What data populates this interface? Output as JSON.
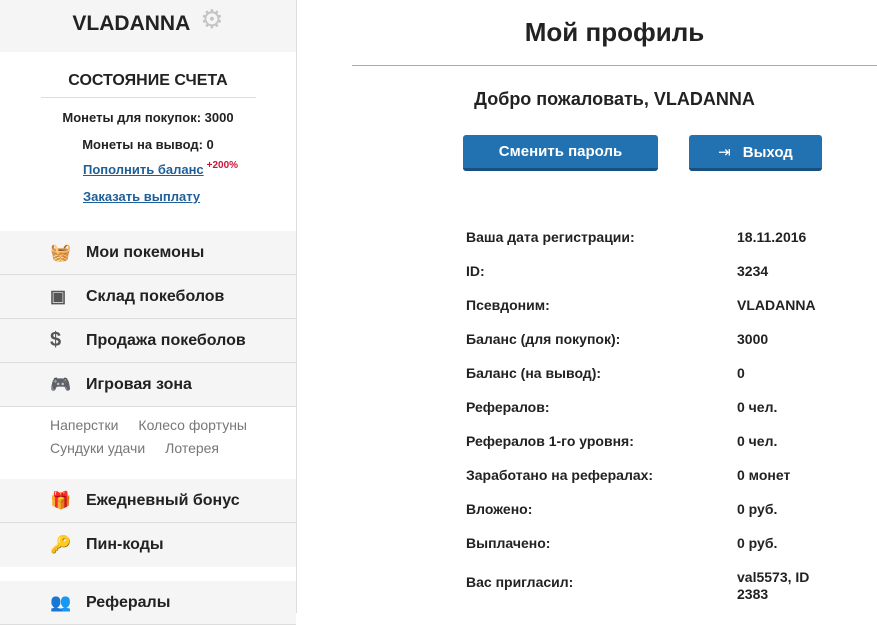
{
  "sidebar": {
    "username": "VLADANNA",
    "account_title": "СОСТОЯНИЕ СЧЕТА",
    "coins_buy": "Монеты для покупок: 3000",
    "coins_out": "Монеты на вывод: 0",
    "topup_link": "Пополнить баланс",
    "topup_badge": "+200%",
    "payout_link": "Заказать выплату",
    "menu": [
      {
        "label": "Мои покемоны",
        "icon": "basket-icon"
      },
      {
        "label": "Склад покеболов",
        "icon": "box-icon"
      },
      {
        "label": "Продажа покеболов",
        "icon": "dollar-icon"
      },
      {
        "label": "Игровая зона",
        "icon": "gamepad-icon"
      }
    ],
    "games": [
      "Наперстки",
      "Колесо фортуны",
      "Сундуки удачи",
      "Лотерея"
    ],
    "menu2": [
      {
        "label": "Ежедневный бонус",
        "icon": "gift-icon"
      },
      {
        "label": "Пин-коды",
        "icon": "key-icon"
      },
      {
        "label": "Рефералы",
        "icon": "users-icon"
      }
    ]
  },
  "main": {
    "title": "Мой профиль",
    "welcome": "Добро пожаловать, VLADANNA",
    "change_password": "Сменить пароль",
    "logout": "Выход",
    "rows": [
      {
        "label": "Ваша дата регистрации:",
        "value": "18.11.2016"
      },
      {
        "label": "ID:",
        "value": "3234"
      },
      {
        "label": "Псевдоним:",
        "value": "VLADANNA"
      },
      {
        "label": "Баланс (для покупок):",
        "value": "3000"
      },
      {
        "label": "Баланс (на вывод):",
        "value": "0"
      },
      {
        "label": "Рефералов:",
        "value": "0 чел."
      },
      {
        "label": "Рефералов 1-го уровня:",
        "value": "0 чел."
      },
      {
        "label": "Заработано на рефералах:",
        "value": "0 монет"
      },
      {
        "label": "Вложено:",
        "value": "0 руб."
      },
      {
        "label": "Выплачено:",
        "value": "0 руб."
      },
      {
        "label": "Вас пригласил:",
        "value": "val5573, ID 2383"
      }
    ]
  },
  "colors": {
    "button": "#2271b1",
    "link": "#1f5f99",
    "badge": "#d0103a"
  }
}
